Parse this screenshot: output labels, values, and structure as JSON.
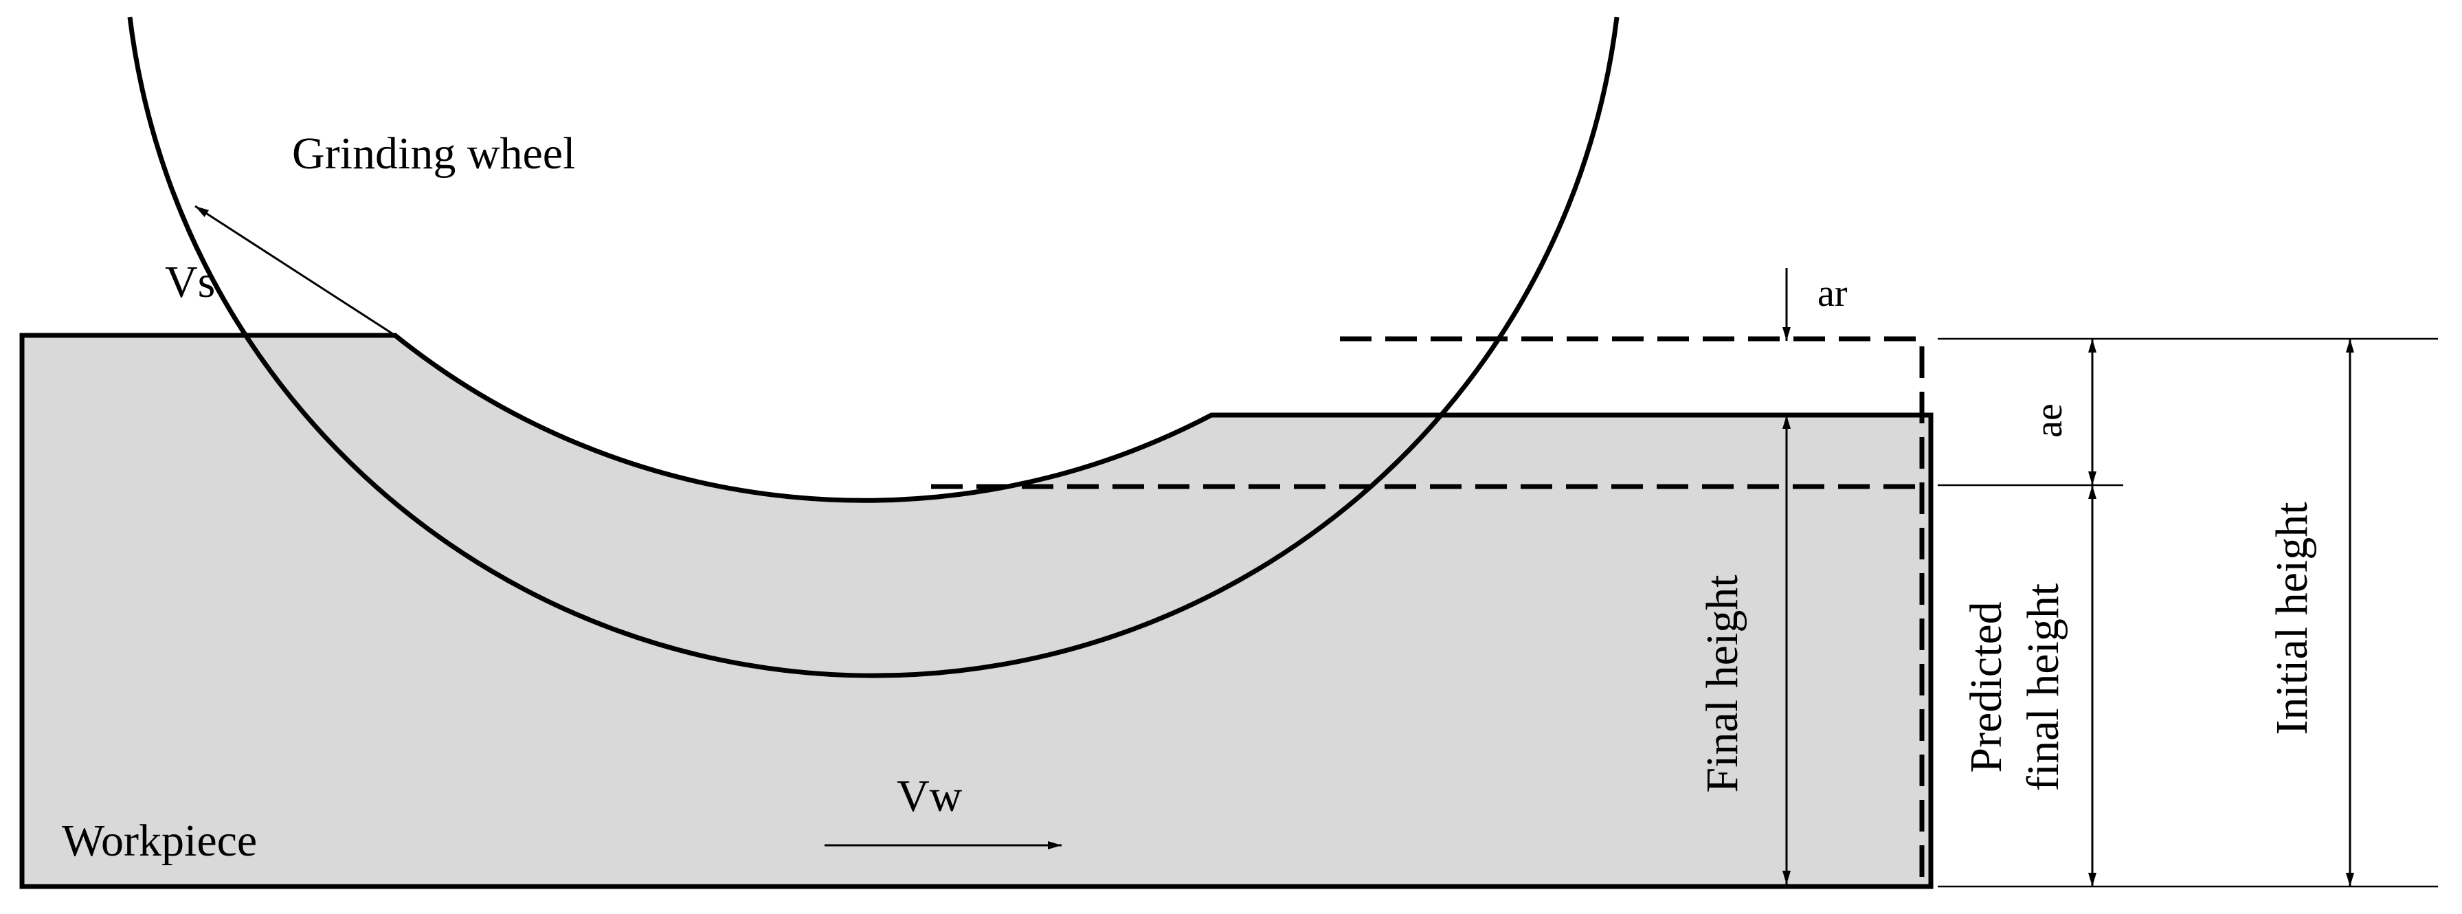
{
  "labels": {
    "wheel": "Grinding wheel",
    "workpiece": "Workpiece",
    "vs": "Vs",
    "vw": "Vw",
    "ar": "ar",
    "ae": "ae",
    "final_height": "Final height",
    "predicted_line1": "Predicted",
    "predicted_line2": "final height",
    "initial_height": "Initial height"
  },
  "colors": {
    "workpiece_fill": "#d9d9d9",
    "line": "#000000",
    "background": "#ffffff"
  }
}
